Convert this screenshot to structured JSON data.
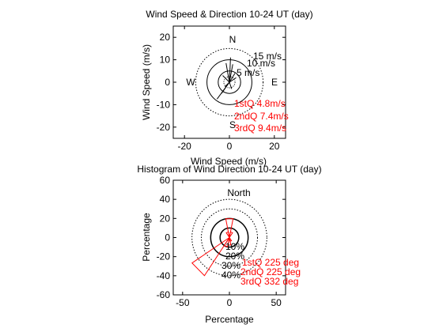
{
  "chart_data": [
    {
      "type": "scatter",
      "title": "Wind Speed & Direction 10-24 UT (day)",
      "xlabel": "Wind Speed (m/s)",
      "ylabel": "Wind Speed (m/s)",
      "xlim": [
        -25,
        25
      ],
      "ylim": [
        -25,
        25
      ],
      "xticks": [
        "-20",
        "0",
        "20"
      ],
      "yticks": [
        "20",
        "10",
        "0",
        "-10",
        "-20"
      ],
      "xtick_values": [
        -20,
        0,
        20
      ],
      "ytick_values": [
        20,
        10,
        0,
        -10,
        -20
      ],
      "compass": {
        "north": "N",
        "east": "E",
        "south": "S",
        "west": "W"
      },
      "rings": [
        {
          "radius": 5,
          "label": "5 m/s",
          "style": "solid"
        },
        {
          "radius": 10,
          "label": "10 m/s",
          "style": "solid"
        },
        {
          "radius": 15,
          "label": "15 m/s",
          "style": "dotted"
        }
      ],
      "quartile_labels": [
        "1stQ 4.8m/s",
        "2ndQ 7.4m/s",
        "3rdQ 9.4m/s"
      ],
      "quartile_color": "#ff0000",
      "grid": false,
      "vectors": [
        {
          "dx": -5.5,
          "dy": -7.5
        },
        {
          "dx": -1.5,
          "dy": 8.5
        },
        {
          "dx": 0.5,
          "dy": 11
        },
        {
          "dx": 1.5,
          "dy": 8
        },
        {
          "dx": -3,
          "dy": 3
        },
        {
          "dx": 2.5,
          "dy": 4
        },
        {
          "dx": -2,
          "dy": -2
        },
        {
          "dx": 1,
          "dy": -3
        },
        {
          "dx": 3,
          "dy": 2
        },
        {
          "dx": -3.5,
          "dy": -5
        }
      ]
    },
    {
      "type": "polar-histogram",
      "title": "Histogram of Wind Direction 10-24 UT (day)",
      "xlabel": "Percentage",
      "ylabel": "Percentage",
      "xlim": [
        -60,
        60
      ],
      "ylim": [
        -60,
        60
      ],
      "xticks": [
        "-50",
        "0",
        "50"
      ],
      "yticks": [
        "60",
        "40",
        "20",
        "0",
        "-20",
        "-40",
        "-60"
      ],
      "xtick_values": [
        -50,
        0,
        50
      ],
      "ytick_values": [
        60,
        40,
        20,
        0,
        -20,
        -40,
        -60
      ],
      "north_label": "North",
      "rings": [
        {
          "radius": 10,
          "label": "10%",
          "style": "solid"
        },
        {
          "radius": 20,
          "label": "20%",
          "style": "solid"
        },
        {
          "radius": 30,
          "label": "30%",
          "style": "dotted"
        },
        {
          "radius": 40,
          "label": "40%",
          "style": "dotted"
        }
      ],
      "quartile_labels": [
        "1stQ 225 deg",
        "2ndQ 225 deg",
        "3rdQ 332 deg"
      ],
      "quartile_color": "#ff0000",
      "grid": false,
      "bins": [
        {
          "direction_deg": 225,
          "percent": 48
        },
        {
          "direction_deg": 0,
          "percent": 20
        },
        {
          "direction_deg": 180,
          "percent": 8
        },
        {
          "direction_deg": 202.5,
          "percent": 10
        },
        {
          "direction_deg": 157.5,
          "percent": 4
        },
        {
          "direction_deg": 22.5,
          "percent": 6
        },
        {
          "direction_deg": 337.5,
          "percent": 6
        }
      ],
      "bin_width_deg": 22.5
    }
  ]
}
